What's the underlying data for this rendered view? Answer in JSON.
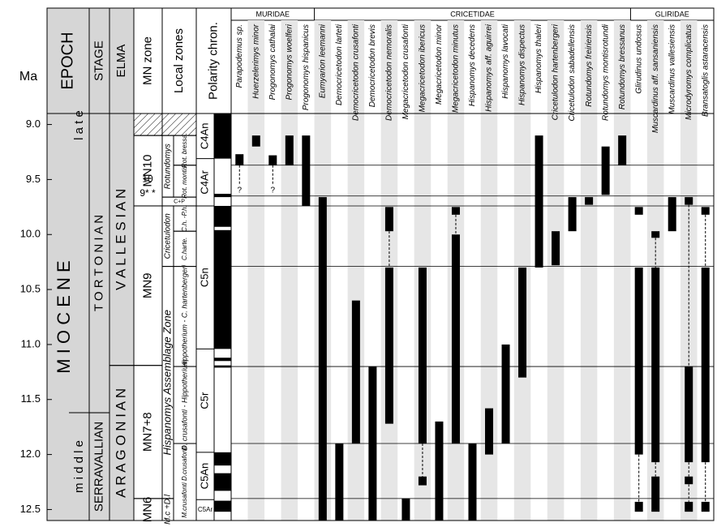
{
  "chart_data": {
    "type": "range",
    "y_label": "Ma",
    "ylim": [
      8.9,
      12.6
    ],
    "yticks": [
      {
        "value": 9,
        "label": "9.0"
      },
      9.5,
      {
        "value": 10,
        "label": "10.0"
      },
      10.5,
      {
        "value": 11,
        "label": "11.0"
      },
      11.5,
      {
        "value": 12,
        "label": "12.0"
      },
      12.5
    ],
    "headers": [
      "EPOCH",
      "STAGE",
      "ELMA",
      "MN zone",
      "Local zones",
      "Polarity chron."
    ],
    "epoch": {
      "label": "M I O C E N E",
      "subepochs": [
        {
          "label": "l a t e",
          "from": 8.9,
          "to": 11.62
        },
        {
          "label": "m i d d l e",
          "from": 11.62,
          "to": 12.6
        }
      ]
    },
    "stages": [
      {
        "label": "T O R T O N I A N",
        "from": 8.9,
        "to": 11.62
      },
      {
        "label": "SERRAVALLIAN",
        "from": 11.62,
        "to": 12.6
      }
    ],
    "elma": [
      {
        "label": "V A L L E S I A N",
        "from": 8.9,
        "to": 11.19
      },
      {
        "label": "A R A G O N I A N",
        "from": 11.19,
        "to": 12.6
      }
    ],
    "mn_zones": [
      {
        "label": null,
        "from": 8.9,
        "to": 9.1
      },
      {
        "label": "MN10",
        "from": 9.1,
        "to": 9.74
      },
      {
        "label": "MN9",
        "from": 9.74,
        "to": 11.19
      },
      {
        "label": "MN7+8",
        "from": 11.19,
        "to": 12.4
      },
      {
        "label": "MN6",
        "from": 12.4,
        "to": 12.6
      }
    ],
    "mn_notes": [
      {
        "label": "10",
        "value": 9.5
      },
      {
        "label": "9* *",
        "value": 9.63
      }
    ],
    "zones": [
      {
        "label": "Rotundomys",
        "from": 9.1,
        "to": 9.66
      },
      {
        "label": "C+P",
        "from": 9.66,
        "to": 9.74
      },
      {
        "label": "Cricetulodon",
        "from": 9.74,
        "to": 10.29
      },
      {
        "label": "Hispanomys Assemblage Zone",
        "from": 10.29,
        "to": 12.4
      },
      {
        "label": "M.c +D.l",
        "from": 12.4,
        "to": 12.6
      }
    ],
    "subzones": [
      {
        "label": "Rot. bressa.",
        "from": 9.1,
        "to": 9.37
      },
      {
        "label": "Rot. montis.",
        "from": 9.37,
        "to": 9.66
      },
      {
        "label": "C.h. -P.h.",
        "from": 9.74,
        "to": 9.97
      },
      {
        "label": "C.harte.",
        "from": 9.97,
        "to": 10.29
      },
      {
        "label": "Hippotherium - C. hartenbergeri",
        "from": 10.29,
        "to": 11.2
      },
      {
        "label": "D. crusafonti - Hippotherium",
        "from": 11.2,
        "to": 11.9
      },
      {
        "label": "M.crusafonti D.crusafonti",
        "from": 11.9,
        "to": 12.6
      }
    ],
    "chrons": [
      {
        "label": "C4An",
        "from": 8.9,
        "to": 9.31
      },
      {
        "label": "C4Ar",
        "from": 9.31,
        "to": 9.74
      },
      {
        "label": "C5n",
        "from": 9.74,
        "to": 11.04
      },
      {
        "label": "C5r",
        "from": 11.04,
        "to": 11.98
      },
      {
        "label": "C5An",
        "from": 11.98,
        "to": 12.41
      },
      {
        "label": "C5Ar",
        "from": 12.41,
        "to": 12.6
      }
    ],
    "normal_polarity": [
      [
        8.9,
        9.31
      ],
      [
        9.63,
        9.66
      ],
      [
        9.74,
        9.93
      ],
      [
        9.96,
        11.04
      ],
      [
        11.12,
        11.15
      ],
      [
        11.19,
        11.21
      ],
      [
        11.98,
        12.1
      ],
      [
        12.17,
        12.33
      ],
      [
        12.42,
        12.52
      ]
    ],
    "boundaries": [
      9.37,
      9.65,
      9.74,
      10.29,
      11.2,
      11.9,
      12.4
    ],
    "bar_color": "#000000",
    "shade_color": "#e6e6e6",
    "families": [
      {
        "name": "MURIDAE",
        "taxa": [
          {
            "name": "Parapodemus sp.",
            "ranges": [
              [
                9.27,
                9.37
              ]
            ],
            "dashed": [
              [
                9.37,
                9.55
              ]
            ],
            "query": {
              "value": 9.6,
              "label": "?"
            }
          },
          {
            "name": "Huerzelerimys minor",
            "ranges": [
              [
                9.1,
                9.2
              ]
            ]
          },
          {
            "name": "Progonomys cathalai",
            "ranges": [
              [
                9.28,
                9.37
              ]
            ],
            "dashed": [
              [
                9.37,
                9.55
              ]
            ],
            "query": {
              "value": 9.6,
              "label": "?"
            }
          },
          {
            "name": "Progonomys woelferi",
            "ranges": [
              [
                9.1,
                9.37
              ]
            ]
          },
          {
            "name": "Progonomys hispanicus",
            "ranges": [
              [
                9.1,
                9.74
              ]
            ]
          }
        ]
      },
      {
        "name": "CRICETIDAE",
        "taxa": [
          {
            "name": "Eumyarion leemanni",
            "ranges": [
              [
                9.66,
                12.6
              ]
            ]
          },
          {
            "name": "Democricetodon larteti",
            "ranges": [
              [
                11.9,
                12.6
              ]
            ]
          },
          {
            "name": "Democricetodon crusafonti",
            "ranges": [
              [
                10.6,
                11.9
              ]
            ]
          },
          {
            "name": "Democricetodon brevis",
            "ranges": [
              [
                11.2,
                12.6
              ]
            ]
          },
          {
            "name": "Democricetodon nemoralis",
            "ranges": [
              [
                9.75,
                9.97
              ],
              [
                10.3,
                11.72
              ]
            ],
            "dashed": [
              [
                9.97,
                10.3
              ]
            ]
          },
          {
            "name": "Megacricetodon crusafonti",
            "ranges": [
              [
                12.4,
                12.6
              ]
            ]
          },
          {
            "name": "Megacricetodon ibericus",
            "ranges": [
              [
                10.3,
                11.9
              ],
              [
                12.2,
                12.28
              ]
            ],
            "dashed": [
              [
                11.9,
                12.2
              ]
            ]
          },
          {
            "name": "Megacricetodon minor",
            "ranges": [
              [
                11.7,
                12.6
              ]
            ]
          },
          {
            "name": "Megacricetodon minutus",
            "ranges": [
              [
                9.75,
                9.82
              ],
              [
                10.0,
                11.9
              ]
            ],
            "dashed": [
              [
                9.82,
                10.0
              ]
            ]
          },
          {
            "name": "Hispanomys decedens",
            "ranges": [
              [
                11.9,
                12.6
              ]
            ]
          },
          {
            "name": "Hispanomys aff. aguirrei",
            "ranges": [
              [
                11.58,
                12.0
              ]
            ]
          },
          {
            "name": "Hispanomys lavocati",
            "ranges": [
              [
                11.0,
                11.9
              ]
            ]
          },
          {
            "name": "Hispanomys dispectus",
            "ranges": [
              [
                10.3,
                11.3
              ]
            ]
          },
          {
            "name": "Hispanomys thaleri",
            "ranges": [
              [
                9.1,
                10.3
              ]
            ]
          },
          {
            "name": "Cricetulodon hartenbergeri",
            "ranges": [
              [
                9.97,
                10.28
              ]
            ]
          },
          {
            "name": "Cricetulodon sabadellensis",
            "ranges": [
              [
                9.66,
                9.97
              ]
            ]
          },
          {
            "name": "Rotundomys freiriensis",
            "ranges": [
              [
                9.66,
                9.73
              ]
            ]
          },
          {
            "name": "Rotundomys montisrotundi",
            "ranges": [
              [
                9.2,
                9.64
              ]
            ]
          },
          {
            "name": "Rotundomys bressanus",
            "ranges": [
              [
                9.1,
                9.37
              ]
            ]
          }
        ]
      },
      {
        "name": "GLIRIDAE",
        "taxa": [
          {
            "name": "Glirudinus undosus",
            "ranges": [
              [
                9.75,
                9.82
              ],
              [
                10.3,
                12.0
              ],
              [
                12.43,
                12.52
              ]
            ],
            "dashed": [
              [
                12.0,
                12.43
              ]
            ]
          },
          {
            "name": "Muscardinus aff. sansaniensis",
            "ranges": [
              [
                9.97,
                10.03
              ],
              [
                10.3,
                12.07
              ],
              [
                12.2,
                12.52
              ]
            ],
            "dashed": [
              [
                10.03,
                10.3
              ],
              [
                12.07,
                12.2
              ]
            ]
          },
          {
            "name": "Muscardinus vallesiensis",
            "ranges": [
              [
                9.66,
                9.97
              ]
            ]
          },
          {
            "name": "Microdyromys complicatus",
            "ranges": [
              [
                9.66,
                9.73
              ],
              [
                11.2,
                12.07
              ],
              [
                12.2,
                12.27
              ],
              [
                12.43,
                12.52
              ]
            ],
            "dashed": [
              [
                9.73,
                11.2
              ],
              [
                12.07,
                12.2
              ],
              [
                12.27,
                12.43
              ]
            ]
          },
          {
            "name": "Bransatoglis astaracensis",
            "ranges": [
              [
                9.75,
                9.82
              ],
              [
                10.3,
                12.07
              ],
              [
                12.43,
                12.52
              ]
            ],
            "dashed": [
              [
                9.82,
                10.3
              ],
              [
                12.07,
                12.43
              ]
            ]
          }
        ]
      }
    ]
  }
}
